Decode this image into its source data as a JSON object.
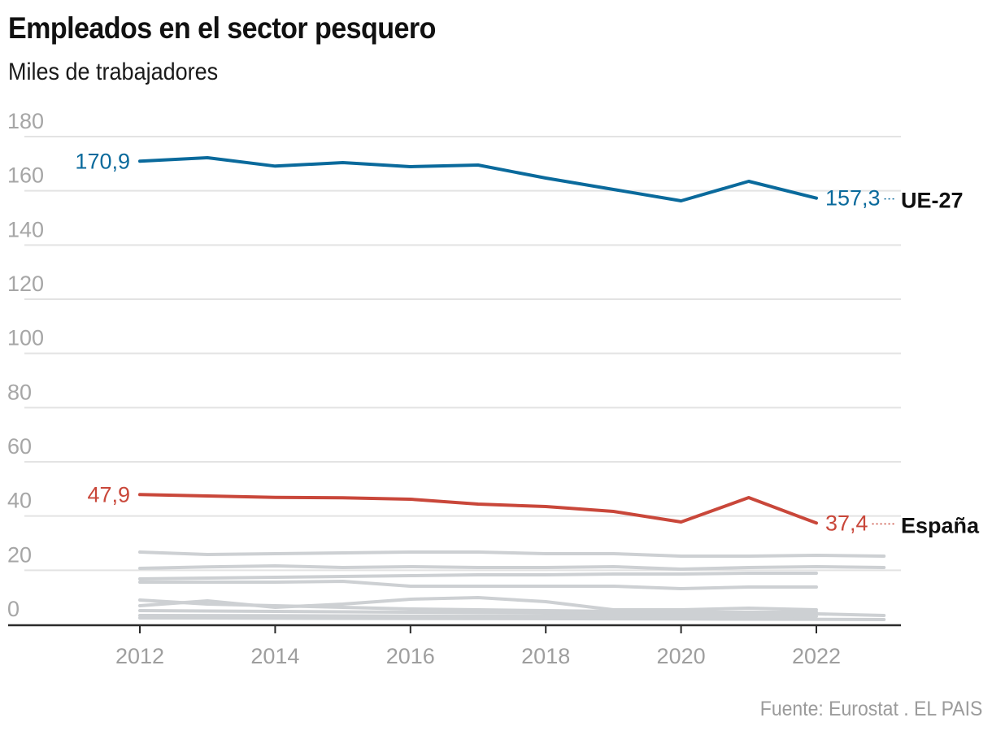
{
  "header": {
    "title": "Empleados en el sector pesquero",
    "subtitle": "Miles de trabajadores"
  },
  "footer": {
    "source": "Fuente: Eurostat . EL PAIS"
  },
  "chart_data": {
    "type": "line",
    "title": "Empleados en el sector pesquero",
    "subtitle": "Miles de trabajadores",
    "xlabel": "",
    "ylabel": "Miles de trabajadores",
    "x_range": [
      2010,
      2023.3
    ],
    "ylim": [
      0,
      180
    ],
    "yticks": [
      0,
      20,
      40,
      60,
      80,
      100,
      120,
      140,
      160,
      180
    ],
    "ytick_labels": [
      "0",
      "20",
      "40",
      "60",
      "80",
      "100",
      "120",
      "140",
      "160",
      "180"
    ],
    "xticks": [
      2012,
      2014,
      2016,
      2018,
      2020,
      2022
    ],
    "xtick_labels": [
      "2012",
      "2014",
      "2016",
      "2018",
      "2020",
      "2022"
    ],
    "grid": true,
    "legend": "direct labels at line ends (right)",
    "highlight_series": [
      {
        "name": "UE-27",
        "color": "#0a6a9c",
        "x": [
          2012,
          2013,
          2014,
          2015,
          2016,
          2017,
          2018,
          2019,
          2020,
          2021,
          2022
        ],
        "values": [
          170.9,
          172.2,
          169.1,
          170.4,
          168.9,
          169.5,
          164.7,
          160.5,
          156.3,
          163.5,
          157.3
        ],
        "start_label": "170,9",
        "end_label": "157,3"
      },
      {
        "name": "España",
        "color": "#c9473a",
        "x": [
          2012,
          2013,
          2014,
          2015,
          2016,
          2017,
          2018,
          2019,
          2020,
          2021,
          2022
        ],
        "values": [
          47.9,
          47.4,
          46.9,
          46.7,
          46.2,
          44.4,
          43.5,
          41.7,
          37.8,
          46.8,
          37.4
        ],
        "start_label": "47,9",
        "end_label": "37,4"
      }
    ],
    "background_series_color": "#cdd0d3",
    "background_series": [
      {
        "name": "",
        "x": [
          2012,
          2013,
          2014,
          2015,
          2016,
          2017,
          2018,
          2019,
          2020,
          2021,
          2022,
          2023
        ],
        "values": [
          26.7,
          25.8,
          26.1,
          26.4,
          26.7,
          26.7,
          26.1,
          26.1,
          25.2,
          25.2,
          25.5,
          25.2
        ]
      },
      {
        "name": "",
        "x": [
          2012,
          2013,
          2014,
          2015,
          2016,
          2017,
          2018,
          2019,
          2020,
          2021,
          2022,
          2023
        ],
        "values": [
          20.7,
          21.2,
          21.6,
          21.0,
          21.3,
          21.0,
          21.0,
          21.3,
          20.4,
          21.0,
          21.3,
          21.0
        ]
      },
      {
        "name": "",
        "x": [
          2012,
          2013,
          2014,
          2015,
          2016,
          2017,
          2018,
          2019,
          2020,
          2021,
          2022
        ],
        "values": [
          16.8,
          17.1,
          17.4,
          17.7,
          18.0,
          18.3,
          18.3,
          18.6,
          18.6,
          18.9,
          18.9
        ]
      },
      {
        "name": "",
        "x": [
          2012,
          2013,
          2014,
          2015,
          2016,
          2017,
          2018,
          2019,
          2020,
          2021,
          2022
        ],
        "values": [
          15.6,
          15.6,
          15.6,
          15.9,
          14.1,
          14.1,
          14.1,
          14.1,
          13.2,
          13.8,
          13.8
        ]
      },
      {
        "name": "",
        "x": [
          2012,
          2013,
          2014,
          2015,
          2016,
          2017,
          2018,
          2019,
          2020,
          2021,
          2022
        ],
        "values": [
          6.9,
          8.7,
          6.3,
          7.5,
          9.3,
          9.9,
          8.4,
          5.4,
          5.4,
          6.0,
          5.4
        ]
      },
      {
        "name": "",
        "x": [
          2012,
          2013,
          2014,
          2015,
          2016,
          2017,
          2018,
          2019,
          2020,
          2021,
          2022
        ],
        "values": [
          9.0,
          7.5,
          6.9,
          6.3,
          5.7,
          5.4,
          5.1,
          4.8,
          4.5,
          4.5,
          4.5
        ]
      },
      {
        "name": "",
        "x": [
          2012,
          2014,
          2016,
          2018,
          2020,
          2022,
          2023
        ],
        "values": [
          5.1,
          4.8,
          4.5,
          4.2,
          3.9,
          3.9,
          3.3
        ]
      },
      {
        "name": "",
        "x": [
          2012,
          2014,
          2016,
          2018,
          2020,
          2022
        ],
        "values": [
          3.3,
          3.2,
          3.1,
          3.0,
          3.0,
          3.0
        ]
      },
      {
        "name": "",
        "x": [
          2012,
          2016,
          2020,
          2023
        ],
        "values": [
          2.4,
          2.2,
          2.0,
          1.8
        ]
      }
    ]
  }
}
